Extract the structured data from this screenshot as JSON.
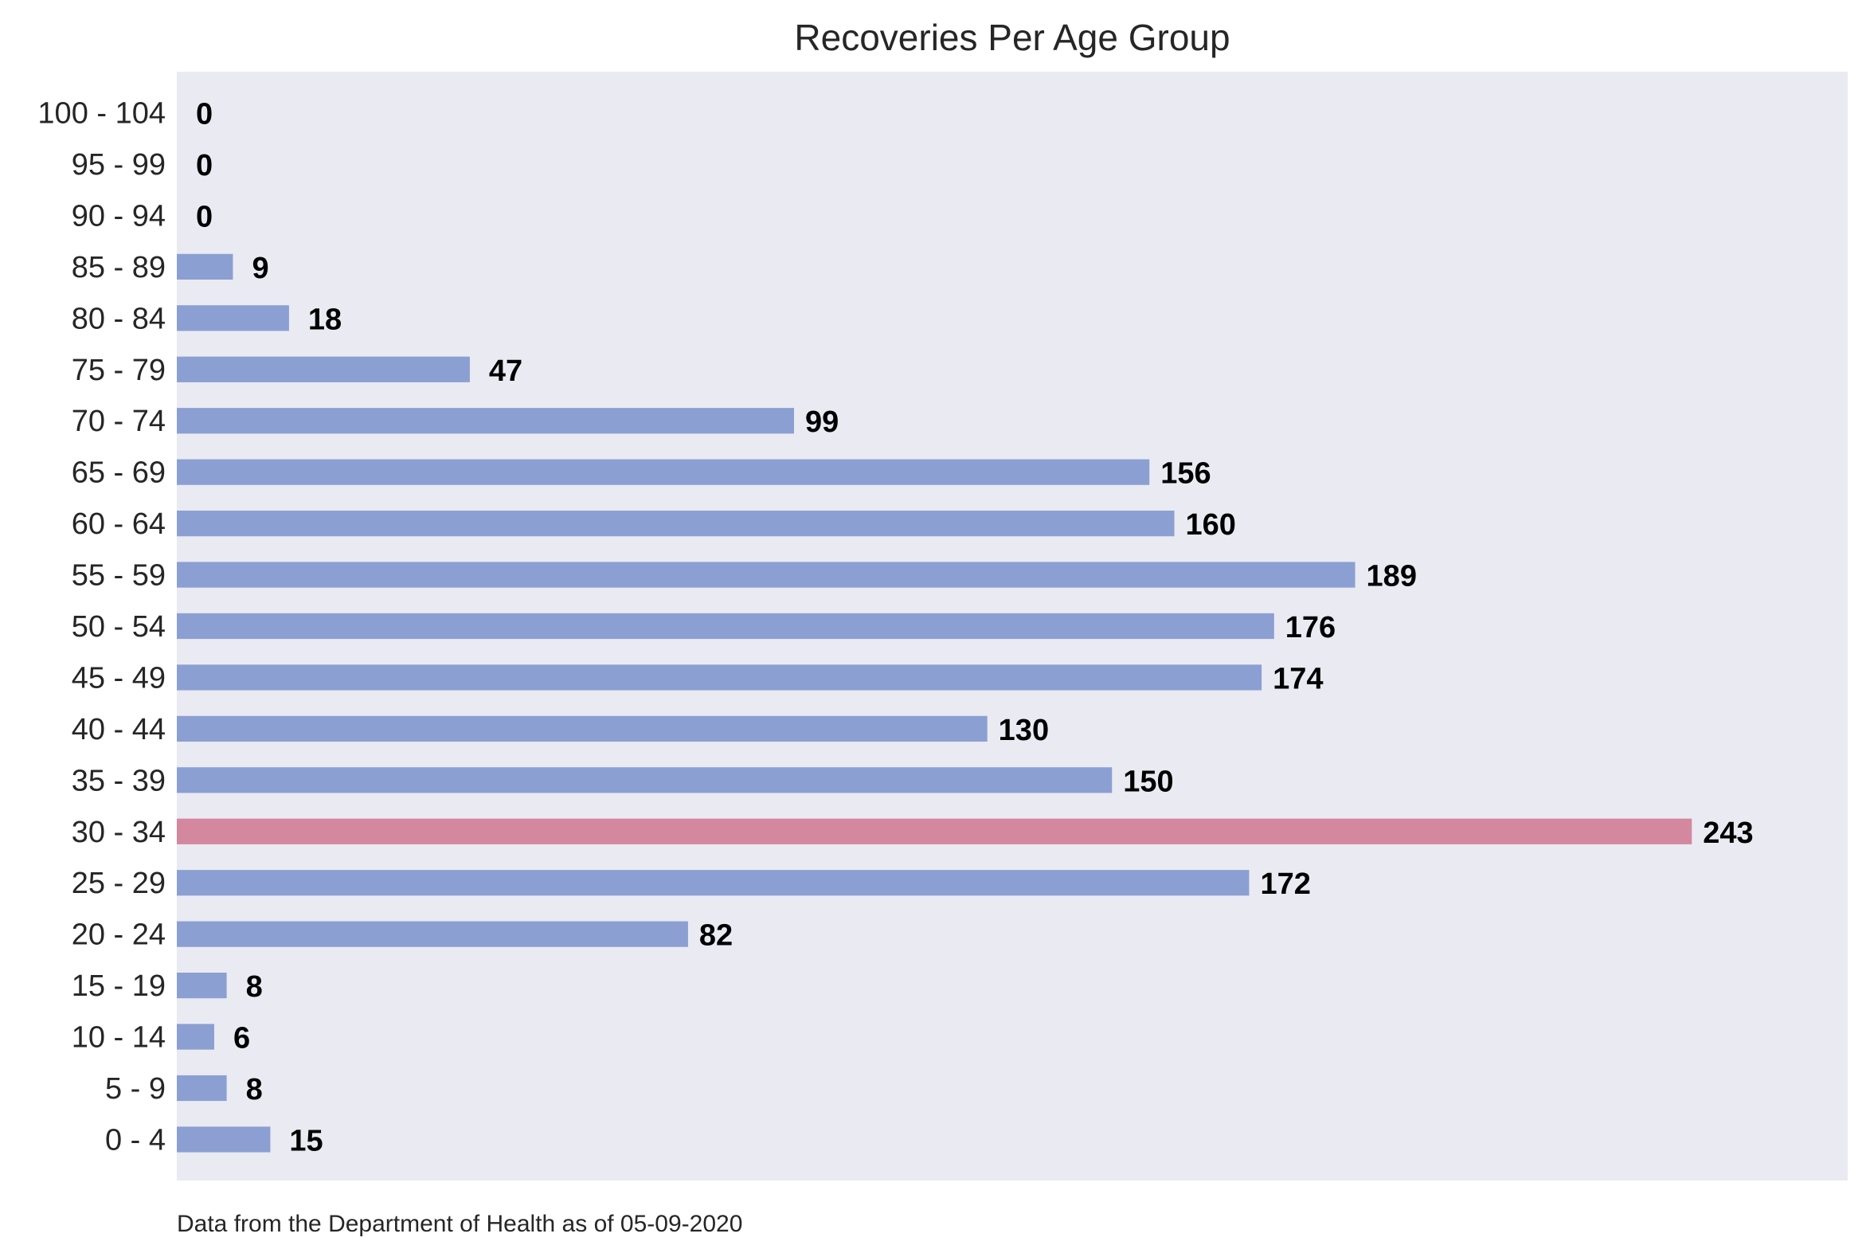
{
  "chart_data": {
    "type": "bar",
    "orientation": "horizontal",
    "title": "Recoveries Per Age Group",
    "xlabel": "",
    "ylabel": "",
    "categories": [
      "0 - 4",
      "5 - 9",
      "10 - 14",
      "15 - 19",
      "20 - 24",
      "25 - 29",
      "30 - 34",
      "35 - 39",
      "40 - 44",
      "45 - 49",
      "50 - 54",
      "55 - 59",
      "60 - 64",
      "65 - 69",
      "70 - 74",
      "75 - 79",
      "80 - 84",
      "85 - 89",
      "90 - 94",
      "95 - 99",
      "100 - 104"
    ],
    "values": [
      15,
      8,
      6,
      8,
      82,
      172,
      243,
      150,
      130,
      174,
      176,
      189,
      160,
      156,
      99,
      47,
      18,
      9,
      0,
      0,
      0
    ],
    "xlim": [
      0,
      268
    ],
    "grid": false,
    "data_labels": true,
    "highlight_category": "30 - 34",
    "colors": {
      "bar": "#8c9fd3",
      "highlight": "#d3889f",
      "plot_background": "#eaeaf2",
      "label": "#000000"
    }
  },
  "footnote": "Data from the Department of Health as of 05-09-2020"
}
